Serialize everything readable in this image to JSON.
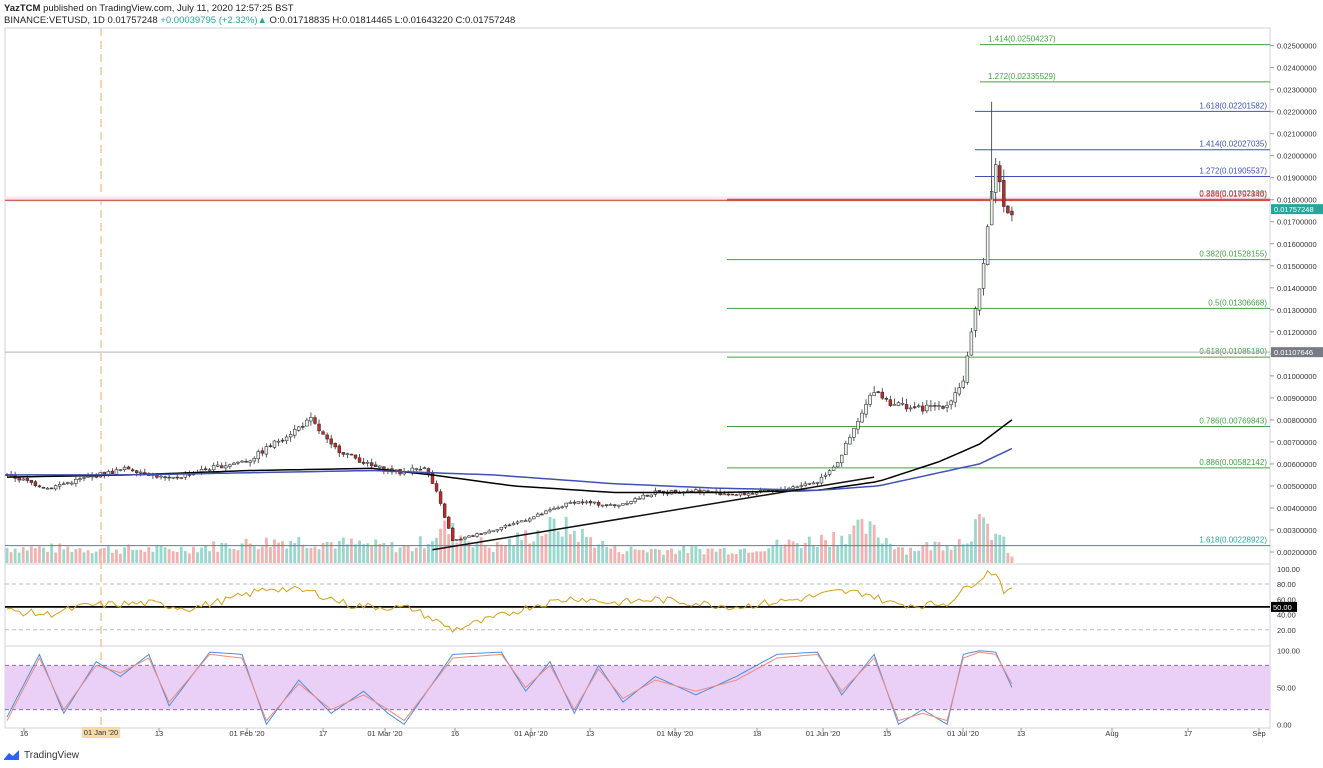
{
  "header": {
    "author": "YazTCM",
    "published_text": "published on TradingView.com, July 11, 2020 12:57:25 BST",
    "symbol_line": "BINANCE:VETUSD, 1D",
    "last": "0.01757248",
    "change": "+0.00039795 (+2.32%)",
    "o": "0.01718835",
    "h": "0.01814465",
    "l": "0.01643220",
    "c": "0.01757248"
  },
  "footer": {
    "brand": "TradingView"
  },
  "chart_data": {
    "type": "candlestick",
    "symbol": "BINANCE:VETUSD",
    "interval": "1D",
    "ylim": [
      0.0015,
      0.0258
    ],
    "y_ticks": [
      "0.02500000",
      "0.02400000",
      "0.02300000",
      "0.02200000",
      "0.02100000",
      "0.02000000",
      "0.01900000",
      "0.01800000",
      "0.01700000",
      "0.01600000",
      "0.01500000",
      "0.01400000",
      "0.01300000",
      "0.01200000",
      "0.01100000",
      "0.01000000",
      "0.00900000",
      "0.00800000",
      "0.00700000",
      "0.00600000",
      "0.00500000",
      "0.00400000",
      "0.00300000",
      "0.00200000"
    ],
    "x_ticks": [
      "16",
      "01 Jan '20",
      "13",
      "01 Feb '20",
      "17",
      "01 Mar '20",
      "16",
      "01 Apr '20",
      "13",
      "01 May '20",
      "18",
      "01 Jun '20",
      "15",
      "01 Jul '20",
      "13",
      "Aug",
      "17",
      "Sep"
    ],
    "price_anchors": [
      [
        0,
        0.0055
      ],
      [
        10,
        0.0049
      ],
      [
        20,
        0.0054
      ],
      [
        30,
        0.0058
      ],
      [
        40,
        0.0053
      ],
      [
        50,
        0.0058
      ],
      [
        60,
        0.0062
      ],
      [
        68,
        0.0072
      ],
      [
        75,
        0.008
      ],
      [
        80,
        0.0068
      ],
      [
        90,
        0.0059
      ],
      [
        97,
        0.0056
      ],
      [
        103,
        0.0059
      ],
      [
        106,
        0.0047
      ],
      [
        110,
        0.0025
      ],
      [
        120,
        0.003
      ],
      [
        130,
        0.0036
      ],
      [
        140,
        0.0043
      ],
      [
        150,
        0.0041
      ],
      [
        160,
        0.0047
      ],
      [
        170,
        0.0048
      ],
      [
        180,
        0.0046
      ],
      [
        190,
        0.0048
      ],
      [
        200,
        0.0052
      ],
      [
        205,
        0.0061
      ],
      [
        210,
        0.0079
      ],
      [
        214,
        0.0094
      ],
      [
        218,
        0.0088
      ],
      [
        225,
        0.0085
      ],
      [
        232,
        0.0087
      ],
      [
        236,
        0.0098
      ],
      [
        238,
        0.0118
      ],
      [
        240,
        0.0139
      ],
      [
        242,
        0.0168
      ],
      [
        244,
        0.0198
      ],
      [
        246,
        0.0177
      ],
      [
        248,
        0.0176
      ]
    ],
    "volume_anchors": [
      [
        0,
        0.4
      ],
      [
        40,
        0.35
      ],
      [
        70,
        0.6
      ],
      [
        100,
        0.4
      ],
      [
        108,
        0.9
      ],
      [
        120,
        0.4
      ],
      [
        136,
        1.0
      ],
      [
        150,
        0.35
      ],
      [
        180,
        0.35
      ],
      [
        200,
        0.6
      ],
      [
        212,
        0.9
      ],
      [
        222,
        0.35
      ],
      [
        236,
        0.6
      ],
      [
        239,
        1.0
      ],
      [
        242,
        0.9
      ],
      [
        245,
        0.7
      ],
      [
        248,
        0.15
      ]
    ],
    "moving_averages": [
      {
        "color": "#000000",
        "points": [
          [
            0,
            0.0054
          ],
          [
            30,
            0.0055
          ],
          [
            60,
            0.0057
          ],
          [
            90,
            0.0058
          ],
          [
            105,
            0.0055
          ],
          [
            125,
            0.005
          ],
          [
            150,
            0.0047
          ],
          [
            175,
            0.0047
          ],
          [
            200,
            0.0048
          ],
          [
            215,
            0.0052
          ],
          [
            230,
            0.0061
          ],
          [
            240,
            0.0069
          ],
          [
            248,
            0.008
          ]
        ]
      },
      {
        "color": "#3f51b5",
        "points": [
          [
            0,
            0.0055
          ],
          [
            30,
            0.0055
          ],
          [
            60,
            0.0056
          ],
          [
            90,
            0.0057
          ],
          [
            120,
            0.0055
          ],
          [
            150,
            0.0051
          ],
          [
            175,
            0.0049
          ],
          [
            200,
            0.0048
          ],
          [
            215,
            0.005
          ],
          [
            230,
            0.0056
          ],
          [
            240,
            0.006
          ],
          [
            248,
            0.0067
          ]
        ]
      }
    ],
    "trendline": {
      "points": [
        [
          105,
          0.0021
        ],
        [
          214,
          0.0054
        ]
      ]
    },
    "fib_levels": [
      {
        "label": "1.414(0.02504237)",
        "value": 0.02504237,
        "color": "#43a047"
      },
      {
        "label": "1.272(0.02335529)",
        "value": 0.02335529,
        "color": "#43a047"
      },
      {
        "label": "1.618(0.02201582)",
        "value": 0.02201582,
        "color": "#3f51b5"
      },
      {
        "label": "1.414(0.02027035)",
        "value": 0.02027035,
        "color": "#3f51b5"
      },
      {
        "label": "1.272(0.01905537)",
        "value": 0.01905537,
        "color": "#3f51b5"
      },
      {
        "label": "0.236(0.01802198)",
        "value": 0.01802198,
        "color": "#777777"
      },
      {
        "label": "0.886(0.01797840)",
        "value": 0.0179784,
        "color": "#e53935"
      },
      {
        "label": "0.382(0.01528155)",
        "value": 0.01528155,
        "color": "#43a047"
      },
      {
        "label": "0.5(0.01306668)",
        "value": 0.01306668,
        "color": "#43a047"
      },
      {
        "label": "0.618(0.01085180)",
        "value": 0.0108518,
        "color": "#43a047"
      },
      {
        "label": "0.786(0.00769843)",
        "value": 0.00769843,
        "color": "#43a047"
      },
      {
        "label": "0.886(0.00582142)",
        "value": 0.00582142,
        "color": "#43a047"
      },
      {
        "label": "1.618(0.00228922)",
        "value": 0.00228922,
        "color": "#26a69a"
      }
    ],
    "price_badges": [
      {
        "label": "0.01757248",
        "value": 0.01757248,
        "color": "#26a69a"
      },
      {
        "label": "0.01107646",
        "value": 0.01107646,
        "color": "#787b86"
      }
    ],
    "rsi": {
      "ylim": [
        0,
        105
      ],
      "ticks": [
        "100.00",
        "80.00",
        "60.00",
        "40.00",
        "20.00"
      ],
      "badge": "50.00",
      "anchors": [
        [
          0,
          45
        ],
        [
          10,
          40
        ],
        [
          20,
          52
        ],
        [
          35,
          55
        ],
        [
          45,
          48
        ],
        [
          55,
          60
        ],
        [
          65,
          75
        ],
        [
          75,
          70
        ],
        [
          85,
          52
        ],
        [
          100,
          48
        ],
        [
          110,
          20
        ],
        [
          120,
          35
        ],
        [
          130,
          52
        ],
        [
          140,
          62
        ],
        [
          150,
          55
        ],
        [
          160,
          60
        ],
        [
          170,
          55
        ],
        [
          180,
          50
        ],
        [
          195,
          60
        ],
        [
          205,
          70
        ],
        [
          212,
          68
        ],
        [
          218,
          55
        ],
        [
          225,
          52
        ],
        [
          232,
          55
        ],
        [
          238,
          80
        ],
        [
          242,
          95
        ],
        [
          244,
          96
        ],
        [
          246,
          72
        ],
        [
          248,
          70
        ]
      ]
    },
    "stoch": {
      "ylim": [
        -5,
        105
      ],
      "ticks": [
        "100.00",
        "50.00",
        "0.00"
      ],
      "anchors": [
        [
          0,
          5
        ],
        [
          8,
          90
        ],
        [
          14,
          20
        ],
        [
          22,
          80
        ],
        [
          28,
          70
        ],
        [
          35,
          90
        ],
        [
          40,
          30
        ],
        [
          50,
          95
        ],
        [
          58,
          90
        ],
        [
          64,
          5
        ],
        [
          72,
          55
        ],
        [
          80,
          20
        ],
        [
          88,
          40
        ],
        [
          94,
          20
        ],
        [
          98,
          5
        ],
        [
          110,
          90
        ],
        [
          122,
          95
        ],
        [
          128,
          50
        ],
        [
          134,
          80
        ],
        [
          140,
          20
        ],
        [
          146,
          75
        ],
        [
          152,
          35
        ],
        [
          160,
          60
        ],
        [
          170,
          45
        ],
        [
          180,
          60
        ],
        [
          190,
          90
        ],
        [
          200,
          95
        ],
        [
          206,
          45
        ],
        [
          214,
          90
        ],
        [
          220,
          5
        ],
        [
          226,
          15
        ],
        [
          232,
          5
        ],
        [
          236,
          90
        ],
        [
          240,
          98
        ],
        [
          244,
          95
        ],
        [
          248,
          55
        ]
      ]
    },
    "stoch_k_anchors": [
      [
        0,
        10
      ],
      [
        8,
        95
      ],
      [
        14,
        15
      ],
      [
        22,
        85
      ],
      [
        28,
        65
      ],
      [
        35,
        95
      ],
      [
        40,
        25
      ],
      [
        50,
        98
      ],
      [
        58,
        95
      ],
      [
        64,
        0
      ],
      [
        72,
        60
      ],
      [
        80,
        15
      ],
      [
        88,
        45
      ],
      [
        94,
        15
      ],
      [
        98,
        0
      ],
      [
        110,
        95
      ],
      [
        122,
        98
      ],
      [
        128,
        45
      ],
      [
        134,
        85
      ],
      [
        140,
        15
      ],
      [
        146,
        80
      ],
      [
        152,
        30
      ],
      [
        160,
        65
      ],
      [
        170,
        40
      ],
      [
        180,
        65
      ],
      [
        190,
        95
      ],
      [
        200,
        98
      ],
      [
        206,
        40
      ],
      [
        214,
        95
      ],
      [
        220,
        0
      ],
      [
        226,
        20
      ],
      [
        232,
        0
      ],
      [
        236,
        95
      ],
      [
        240,
        100
      ],
      [
        244,
        98
      ],
      [
        248,
        50
      ]
    ]
  }
}
